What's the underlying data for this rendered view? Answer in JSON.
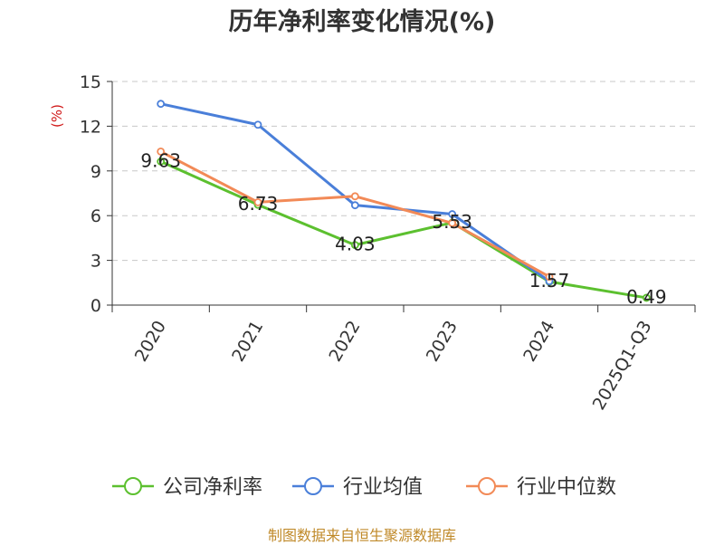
{
  "chart_data": {
    "type": "line",
    "title": "历年净利率变化情况(%)",
    "ylabel": "(%)",
    "xlabel": "",
    "categories": [
      "2020",
      "2021",
      "2022",
      "2023",
      "2024",
      "2025Q1-Q3"
    ],
    "ylim": [
      0,
      15
    ],
    "yticks": [
      0,
      3,
      6,
      9,
      12,
      15
    ],
    "grid": true,
    "legend_position": "bottom",
    "series": [
      {
        "name": "公司净利率",
        "color": "#5cc02f",
        "values": [
          9.63,
          6.73,
          4.03,
          5.53,
          1.57,
          0.49
        ],
        "labels": [
          "9.63",
          "6.73",
          "4.03",
          "5.53",
          "1.57",
          "0.49"
        ]
      },
      {
        "name": "行业均值",
        "color": "#4a7fd9",
        "values": [
          13.5,
          12.1,
          6.7,
          6.1,
          1.6,
          null
        ]
      },
      {
        "name": "行业中位数",
        "color": "#f28a57",
        "values": [
          10.3,
          6.9,
          7.3,
          5.5,
          1.9,
          null
        ]
      }
    ],
    "source": "制图数据来自恒生聚源数据库"
  }
}
